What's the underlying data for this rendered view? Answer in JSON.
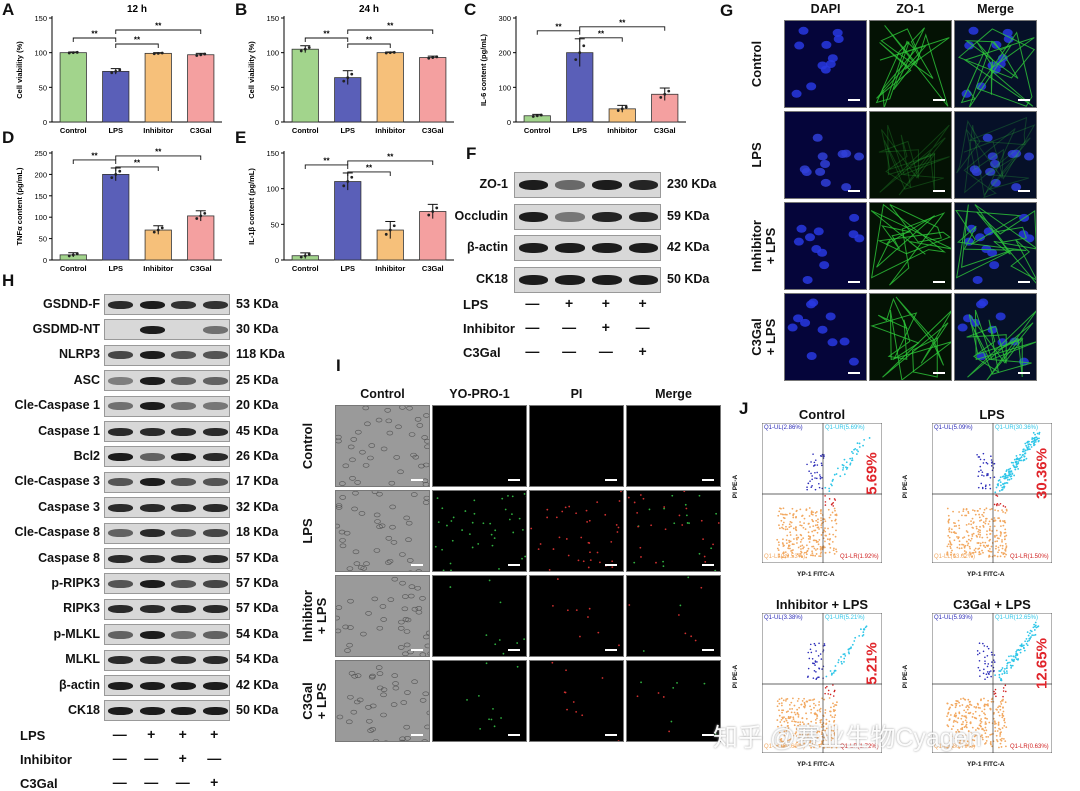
{
  "panels": {
    "A": "A",
    "B": "B",
    "C": "C",
    "D": "D",
    "E": "E",
    "F": "F",
    "G": "G",
    "H": "H",
    "I": "I",
    "J": "J"
  },
  "chart_data": [
    {
      "id": "A",
      "type": "bar",
      "title": "12 h",
      "ylabel": "Cell viability (%)",
      "categories": [
        "Control",
        "LPS",
        "Inhibitor",
        "C3Gal"
      ],
      "values": [
        100,
        73,
        99,
        97
      ],
      "errors": [
        1,
        4,
        1,
        2
      ],
      "ylim": [
        0,
        150
      ],
      "yticks": [
        0,
        50,
        100,
        150
      ],
      "colors": [
        "#a2d48c",
        "#5a5fb8",
        "#f6c07a",
        "#f4a0a0"
      ],
      "sig": [
        "**",
        "**",
        "**"
      ]
    },
    {
      "id": "B",
      "type": "bar",
      "title": "24 h",
      "ylabel": "Cell viability (%)",
      "categories": [
        "Control",
        "LPS",
        "Inhibitor",
        "C3Gal"
      ],
      "values": [
        105,
        64,
        100,
        93
      ],
      "errors": [
        5,
        10,
        1,
        2
      ],
      "ylim": [
        0,
        150
      ],
      "yticks": [
        0,
        50,
        100,
        150
      ],
      "colors": [
        "#a2d48c",
        "#5a5fb8",
        "#f6c07a",
        "#f4a0a0"
      ],
      "sig": [
        "**",
        "**",
        "**"
      ]
    },
    {
      "id": "C",
      "type": "bar",
      "title": "",
      "ylabel": "IL-6 content (pg/mL)",
      "categories": [
        "Control",
        "LPS",
        "Inhibitor",
        "C3Gal"
      ],
      "values": [
        18,
        200,
        38,
        80
      ],
      "errors": [
        4,
        40,
        10,
        18
      ],
      "ylim": [
        0,
        300
      ],
      "yticks": [
        0,
        100,
        200,
        300
      ],
      "colors": [
        "#a2d48c",
        "#5a5fb8",
        "#f6c07a",
        "#f4a0a0"
      ],
      "sig": [
        "**",
        "**",
        "**"
      ]
    },
    {
      "id": "D",
      "type": "bar",
      "title": "",
      "ylabel": "TNFα content (pg/mL)",
      "categories": [
        "Control",
        "LPS",
        "Inhibitor",
        "C3Gal"
      ],
      "values": [
        12,
        200,
        70,
        103
      ],
      "errors": [
        5,
        15,
        10,
        12
      ],
      "ylim": [
        0,
        250
      ],
      "yticks": [
        0,
        50,
        100,
        150,
        200,
        250
      ],
      "colors": [
        "#a2d48c",
        "#5a5fb8",
        "#f6c07a",
        "#f4a0a0"
      ],
      "sig": [
        "**",
        "**",
        "**"
      ]
    },
    {
      "id": "E",
      "type": "bar",
      "title": "",
      "ylabel": "IL-1β content (pg/mL)",
      "categories": [
        "Control",
        "LPS",
        "Inhibitor",
        "C3Gal"
      ],
      "values": [
        6,
        110,
        42,
        68
      ],
      "errors": [
        4,
        12,
        12,
        10
      ],
      "ylim": [
        0,
        150
      ],
      "yticks": [
        0,
        50,
        100,
        150
      ],
      "colors": [
        "#a2d48c",
        "#5a5fb8",
        "#f6c07a",
        "#f4a0a0"
      ],
      "sig": [
        "**",
        "**",
        "**"
      ]
    }
  ],
  "panelF": {
    "rows": [
      {
        "label": "ZO-1",
        "kda": "230 KDa",
        "i": [
          1,
          0.45,
          1,
          0.95
        ]
      },
      {
        "label": "Occludin",
        "kda": "59 KDa",
        "i": [
          1,
          0.35,
          0.95,
          0.95
        ]
      },
      {
        "label": "β-actin",
        "kda": "42 KDa",
        "i": [
          1,
          1,
          1,
          1
        ]
      },
      {
        "label": "CK18",
        "kda": "50 KDa",
        "i": [
          1,
          1,
          1,
          1
        ]
      }
    ],
    "conditions": [
      {
        "label": "LPS",
        "signs": [
          "—",
          "+",
          "+",
          "+"
        ]
      },
      {
        "label": "Inhibitor",
        "signs": [
          "—",
          "—",
          "+",
          "—"
        ]
      },
      {
        "label": "C3Gal",
        "signs": [
          "—",
          "—",
          "—",
          "+"
        ]
      }
    ]
  },
  "panelH": {
    "rows": [
      {
        "label": "GSDND-F",
        "kda": "53 KDa",
        "i": [
          0.9,
          1,
          0.85,
          0.85
        ]
      },
      {
        "label": "GSDMD-NT",
        "kda": "30 KDa",
        "i": [
          0,
          1,
          0,
          0.4
        ]
      },
      {
        "label": "NLRP3",
        "kda": "118 KDa",
        "i": [
          0.7,
          1,
          0.6,
          0.6
        ]
      },
      {
        "label": "ASC",
        "kda": "25 KDa",
        "i": [
          0.3,
          1,
          0.5,
          0.5
        ]
      },
      {
        "label": "Cle-Caspase 1",
        "kda": "20 KDa",
        "i": [
          0.4,
          1,
          0.4,
          0.35
        ]
      },
      {
        "label": "Caspase 1",
        "kda": "45 KDa",
        "i": [
          0.9,
          0.9,
          0.9,
          0.9
        ]
      },
      {
        "label": "Bcl2",
        "kda": "26 KDa",
        "i": [
          1,
          0.5,
          1,
          0.9
        ]
      },
      {
        "label": "Cle-Caspase 3",
        "kda": "17 KDa",
        "i": [
          0.6,
          1,
          0.6,
          0.6
        ]
      },
      {
        "label": "Caspase 3",
        "kda": "32 KDa",
        "i": [
          0.9,
          0.9,
          0.9,
          0.9
        ]
      },
      {
        "label": "Cle-Caspase 8",
        "kda": "18 KDa",
        "i": [
          0.5,
          0.9,
          0.6,
          0.7
        ]
      },
      {
        "label": "Caspase 8",
        "kda": "57 KDa",
        "i": [
          0.9,
          0.9,
          0.9,
          0.9
        ]
      },
      {
        "label": "p-RIPK3",
        "kda": "57 KDa",
        "i": [
          0.6,
          1,
          0.6,
          0.7
        ]
      },
      {
        "label": "RIPK3",
        "kda": "57 KDa",
        "i": [
          0.9,
          0.9,
          0.9,
          0.9
        ]
      },
      {
        "label": "p-MLKL",
        "kda": "54 KDa",
        "i": [
          0.5,
          1,
          0.4,
          0.5
        ]
      },
      {
        "label": "MLKL",
        "kda": "54 KDa",
        "i": [
          0.9,
          0.9,
          0.9,
          0.9
        ]
      },
      {
        "label": "β-actin",
        "kda": "42 KDa",
        "i": [
          1,
          1,
          1,
          1
        ]
      },
      {
        "label": "CK18",
        "kda": "50 KDa",
        "i": [
          1,
          1,
          1,
          1
        ]
      }
    ],
    "conditions": [
      {
        "label": "LPS",
        "signs": [
          "—",
          "+",
          "+",
          "+"
        ]
      },
      {
        "label": "Inhibitor",
        "signs": [
          "—",
          "—",
          "+",
          "—"
        ]
      },
      {
        "label": "C3Gal",
        "signs": [
          "—",
          "—",
          "—",
          "+"
        ]
      }
    ]
  },
  "panelG": {
    "cols": [
      "DAPI",
      "ZO-1",
      "Merge"
    ],
    "rows": [
      "Control",
      "LPS",
      "Inhibitor\n+ LPS",
      "C3Gal\n+ LPS"
    ]
  },
  "panelI": {
    "cols": [
      "Control",
      "YO-PRO-1",
      "PI",
      "Merge"
    ],
    "rows": [
      "Control",
      "LPS",
      "Inhibitor\n+ LPS",
      "C3Gal\n+ LPS"
    ]
  },
  "panelJ": {
    "plots": [
      {
        "title": "Control",
        "pct": "5.69%",
        "ul": "Q1-UL(2.86%)",
        "ur": "Q1-UR(5.69%)",
        "ll": "Q1-LL(89.53%)",
        "lr": "Q1-LR(1.92%)"
      },
      {
        "title": "LPS",
        "pct": "30.36%",
        "ul": "Q1-UL(5.09%)",
        "ur": "Q1-UR(30.36%)",
        "ll": "Q1-LL(63.02%)",
        "lr": "Q1-LR(1.50%)"
      },
      {
        "title": "Inhibitor + LPS",
        "pct": "5.21%",
        "ul": "Q1-UL(3.38%)",
        "ur": "Q1-UR(5.21%)",
        "ll": "Q1-LL(89.69%)",
        "lr": "Q1-LR(1.72%)"
      },
      {
        "title": "C3Gal + LPS",
        "pct": "12.65%",
        "ul": "Q1-UL(5.93%)",
        "ur": "Q1-UR(12.65%)",
        "ll": "Q1-LL(80.79%)",
        "lr": "Q1-LR(0.63%)"
      }
    ],
    "xlabel": "YP-1 FITC-A",
    "ylabel": "PI PE-A"
  },
  "watermark": "知乎 @赛业生物Cyagen"
}
